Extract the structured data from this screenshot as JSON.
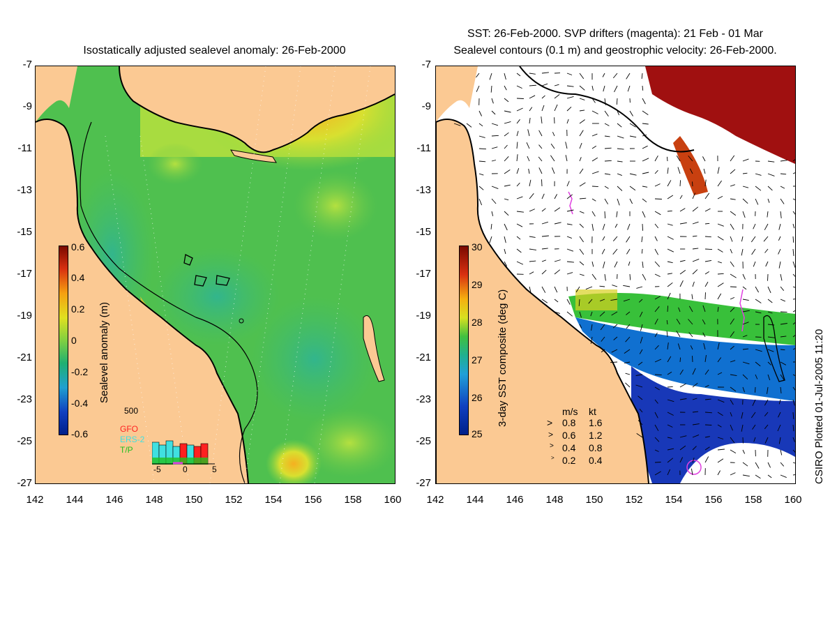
{
  "left_panel": {
    "title": "Isostatically adjusted sealevel anomaly: 26-Feb-2000",
    "colorbar": {
      "label": "Sealevel anomaly (m)",
      "ticks": [
        "0.6",
        "0.4",
        "0.2",
        "0",
        "-0.2",
        "-0.4",
        "-0.6"
      ]
    },
    "inset": {
      "max_label": "500",
      "legend": [
        {
          "text": "GFO",
          "color": "#ff2020"
        },
        {
          "text": "ERS-2",
          "color": "#40e0e0"
        },
        {
          "text": "T/P",
          "color": "#20c020"
        }
      ],
      "x_ticks": [
        "-5",
        "0",
        "5"
      ]
    }
  },
  "right_panel": {
    "title_line1": "SST: 26-Feb-2000. SVP drifters (magenta): 21 Feb - 01 Mar",
    "title_line2": "Sealevel contours (0.1 m) and geostrophic velocity: 26-Feb-2000.",
    "colorbar": {
      "label": "3-day SST composite (deg C)",
      "ticks": [
        "30",
        "29",
        "28",
        "27",
        "26",
        "25"
      ]
    },
    "velocity_legend": {
      "header_ms": "m/s",
      "header_kt": "kt",
      "rows": [
        {
          "ms": "0.8",
          "kt": "1.6"
        },
        {
          "ms": "0.6",
          "kt": "1.2"
        },
        {
          "ms": "0.4",
          "kt": "0.8"
        },
        {
          "ms": "0.2",
          "kt": "0.4"
        }
      ]
    }
  },
  "axes": {
    "y_ticks": [
      "-7",
      "-9",
      "-11",
      "-13",
      "-15",
      "-17",
      "-19",
      "-21",
      "-23",
      "-25",
      "-27"
    ],
    "x_ticks": [
      "142",
      "144",
      "146",
      "148",
      "150",
      "152",
      "154",
      "156",
      "158",
      "160"
    ]
  },
  "colors": {
    "land": "#fbc993",
    "ocean_green": "#4cc04a",
    "ocean_teal": "#30b888",
    "warm_yellow": "#d8e020",
    "sst_red": "#a01010",
    "sst_blue": "#1030c0",
    "drifter": "#e040e0"
  },
  "footer": {
    "plotted": "CSIRO Plotted 01-Jul-2005 11:20"
  }
}
